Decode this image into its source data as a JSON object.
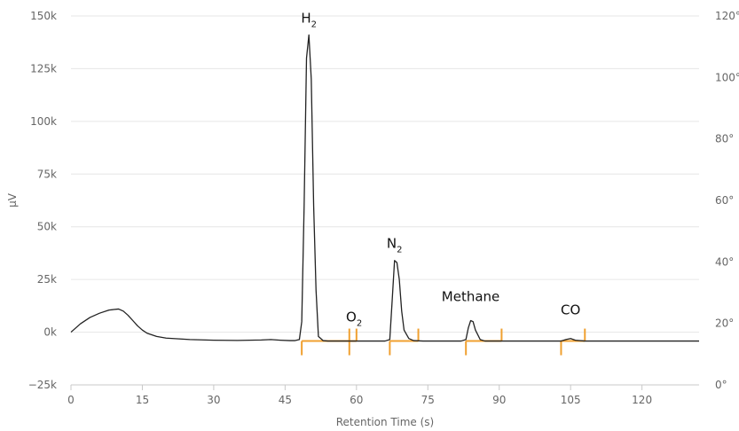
{
  "chart_data": {
    "type": "line",
    "title": "",
    "xlabel": "Retention Time (s)",
    "ylabel": "µV",
    "xlim": [
      0,
      132
    ],
    "ylim": [
      -25000,
      150000
    ],
    "y2lim": [
      0,
      120
    ],
    "x_ticks": [
      0,
      15,
      30,
      45,
      60,
      75,
      90,
      105,
      120
    ],
    "y_ticks": [
      {
        "value": -25000,
        "label": "−25k"
      },
      {
        "value": 0,
        "label": "0k"
      },
      {
        "value": 25000,
        "label": "25k"
      },
      {
        "value": 50000,
        "label": "50k"
      },
      {
        "value": 75000,
        "label": "75k"
      },
      {
        "value": 100000,
        "label": "100k"
      },
      {
        "value": 125000,
        "label": "125k"
      },
      {
        "value": 150000,
        "label": "150k"
      }
    ],
    "y2_ticks": [
      {
        "value": 0,
        "label": "0°"
      },
      {
        "value": 20,
        "label": "20°"
      },
      {
        "value": 40,
        "label": "40°"
      },
      {
        "value": 60,
        "label": "60°"
      },
      {
        "value": 80,
        "label": "80°"
      },
      {
        "value": 100,
        "label": "100°"
      },
      {
        "value": 120,
        "label": "120°"
      }
    ],
    "grid": true,
    "colors": {
      "trace": "#222222",
      "integration": "#f0a030",
      "grid": "#e6e6e6",
      "text": "#666666"
    },
    "series": [
      {
        "x": [
          0,
          2,
          4,
          6,
          8,
          10,
          11,
          12,
          13,
          14,
          15,
          16,
          18,
          20,
          25,
          30,
          35,
          40,
          42,
          44,
          46,
          47,
          48,
          48.5,
          49,
          49.5,
          50,
          50.5,
          51,
          51.5,
          52,
          53,
          54,
          56,
          58,
          60,
          62,
          64,
          66,
          67,
          67.5,
          68,
          68.5,
          69,
          69.5,
          70,
          71,
          72,
          74,
          76,
          78,
          80,
          82,
          83,
          83.5,
          84,
          84.5,
          85,
          86,
          87,
          90,
          95,
          100,
          103,
          104,
          105,
          106,
          108,
          110,
          115,
          120,
          125,
          130,
          132
        ],
        "y": [
          0,
          4000,
          7000,
          9000,
          10500,
          11000,
          10000,
          8000,
          5500,
          3000,
          1000,
          -500,
          -2000,
          -2800,
          -3500,
          -3800,
          -3900,
          -3700,
          -3500,
          -3800,
          -4000,
          -4000,
          -3500,
          5000,
          60000,
          130000,
          141000,
          120000,
          60000,
          20000,
          -2000,
          -4000,
          -4200,
          -4200,
          -4200,
          -4200,
          -4200,
          -4200,
          -4200,
          -3500,
          15000,
          34000,
          33000,
          25000,
          10000,
          1000,
          -3000,
          -4000,
          -4200,
          -4200,
          -4200,
          -4200,
          -4200,
          -3500,
          2000,
          5500,
          5000,
          1000,
          -3500,
          -4200,
          -4200,
          -4200,
          -4200,
          -4200,
          -3500,
          -3000,
          -3800,
          -4200,
          -4200,
          -4200,
          -4200,
          -4200,
          -4200,
          -4200
        ]
      }
    ],
    "peaks": [
      {
        "label": "H",
        "subscript": "2",
        "x": 50,
        "y": 141000,
        "start": 48.5,
        "end": 58.5
      },
      {
        "label": "O",
        "subscript": "2",
        "x": 59.5,
        "y": -4200,
        "start": 58.5,
        "end": 60
      },
      {
        "label": "N",
        "subscript": "2",
        "x": 68,
        "y": 34000,
        "start": 67,
        "end": 73
      },
      {
        "label": "Methane",
        "subscript": "",
        "x": 84,
        "y": 5500,
        "start": 83,
        "end": 90.5
      },
      {
        "label": "CO",
        "subscript": "",
        "x": 105,
        "y": -3000,
        "start": 103,
        "end": 108
      }
    ]
  }
}
